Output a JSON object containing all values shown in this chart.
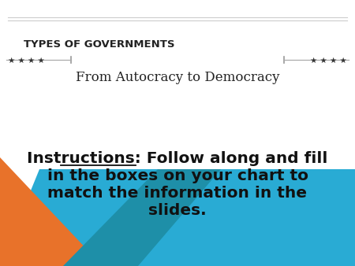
{
  "bg_color": "#ffffff",
  "title": "TYPES OF GOVERNMENTS",
  "subtitle": "From Autocracy to Democracy",
  "instruction_label": "Instructions:",
  "instruction_text": ": Follow along and fill\nin the boxes on your chart to\nmatch the information in the\nslides.",
  "title_fontsize": 9.5,
  "subtitle_fontsize": 12,
  "instruction_fontsize": 14.5,
  "stars_left": "★ ★ ★ ★",
  "stars_right": "★ ★ ★ ★",
  "orange_color": "#E8722A",
  "blue_color": "#29ABD4",
  "dark_blue_color": "#1E8FA8",
  "text_color": "#222222",
  "line_color": "#cccccc"
}
